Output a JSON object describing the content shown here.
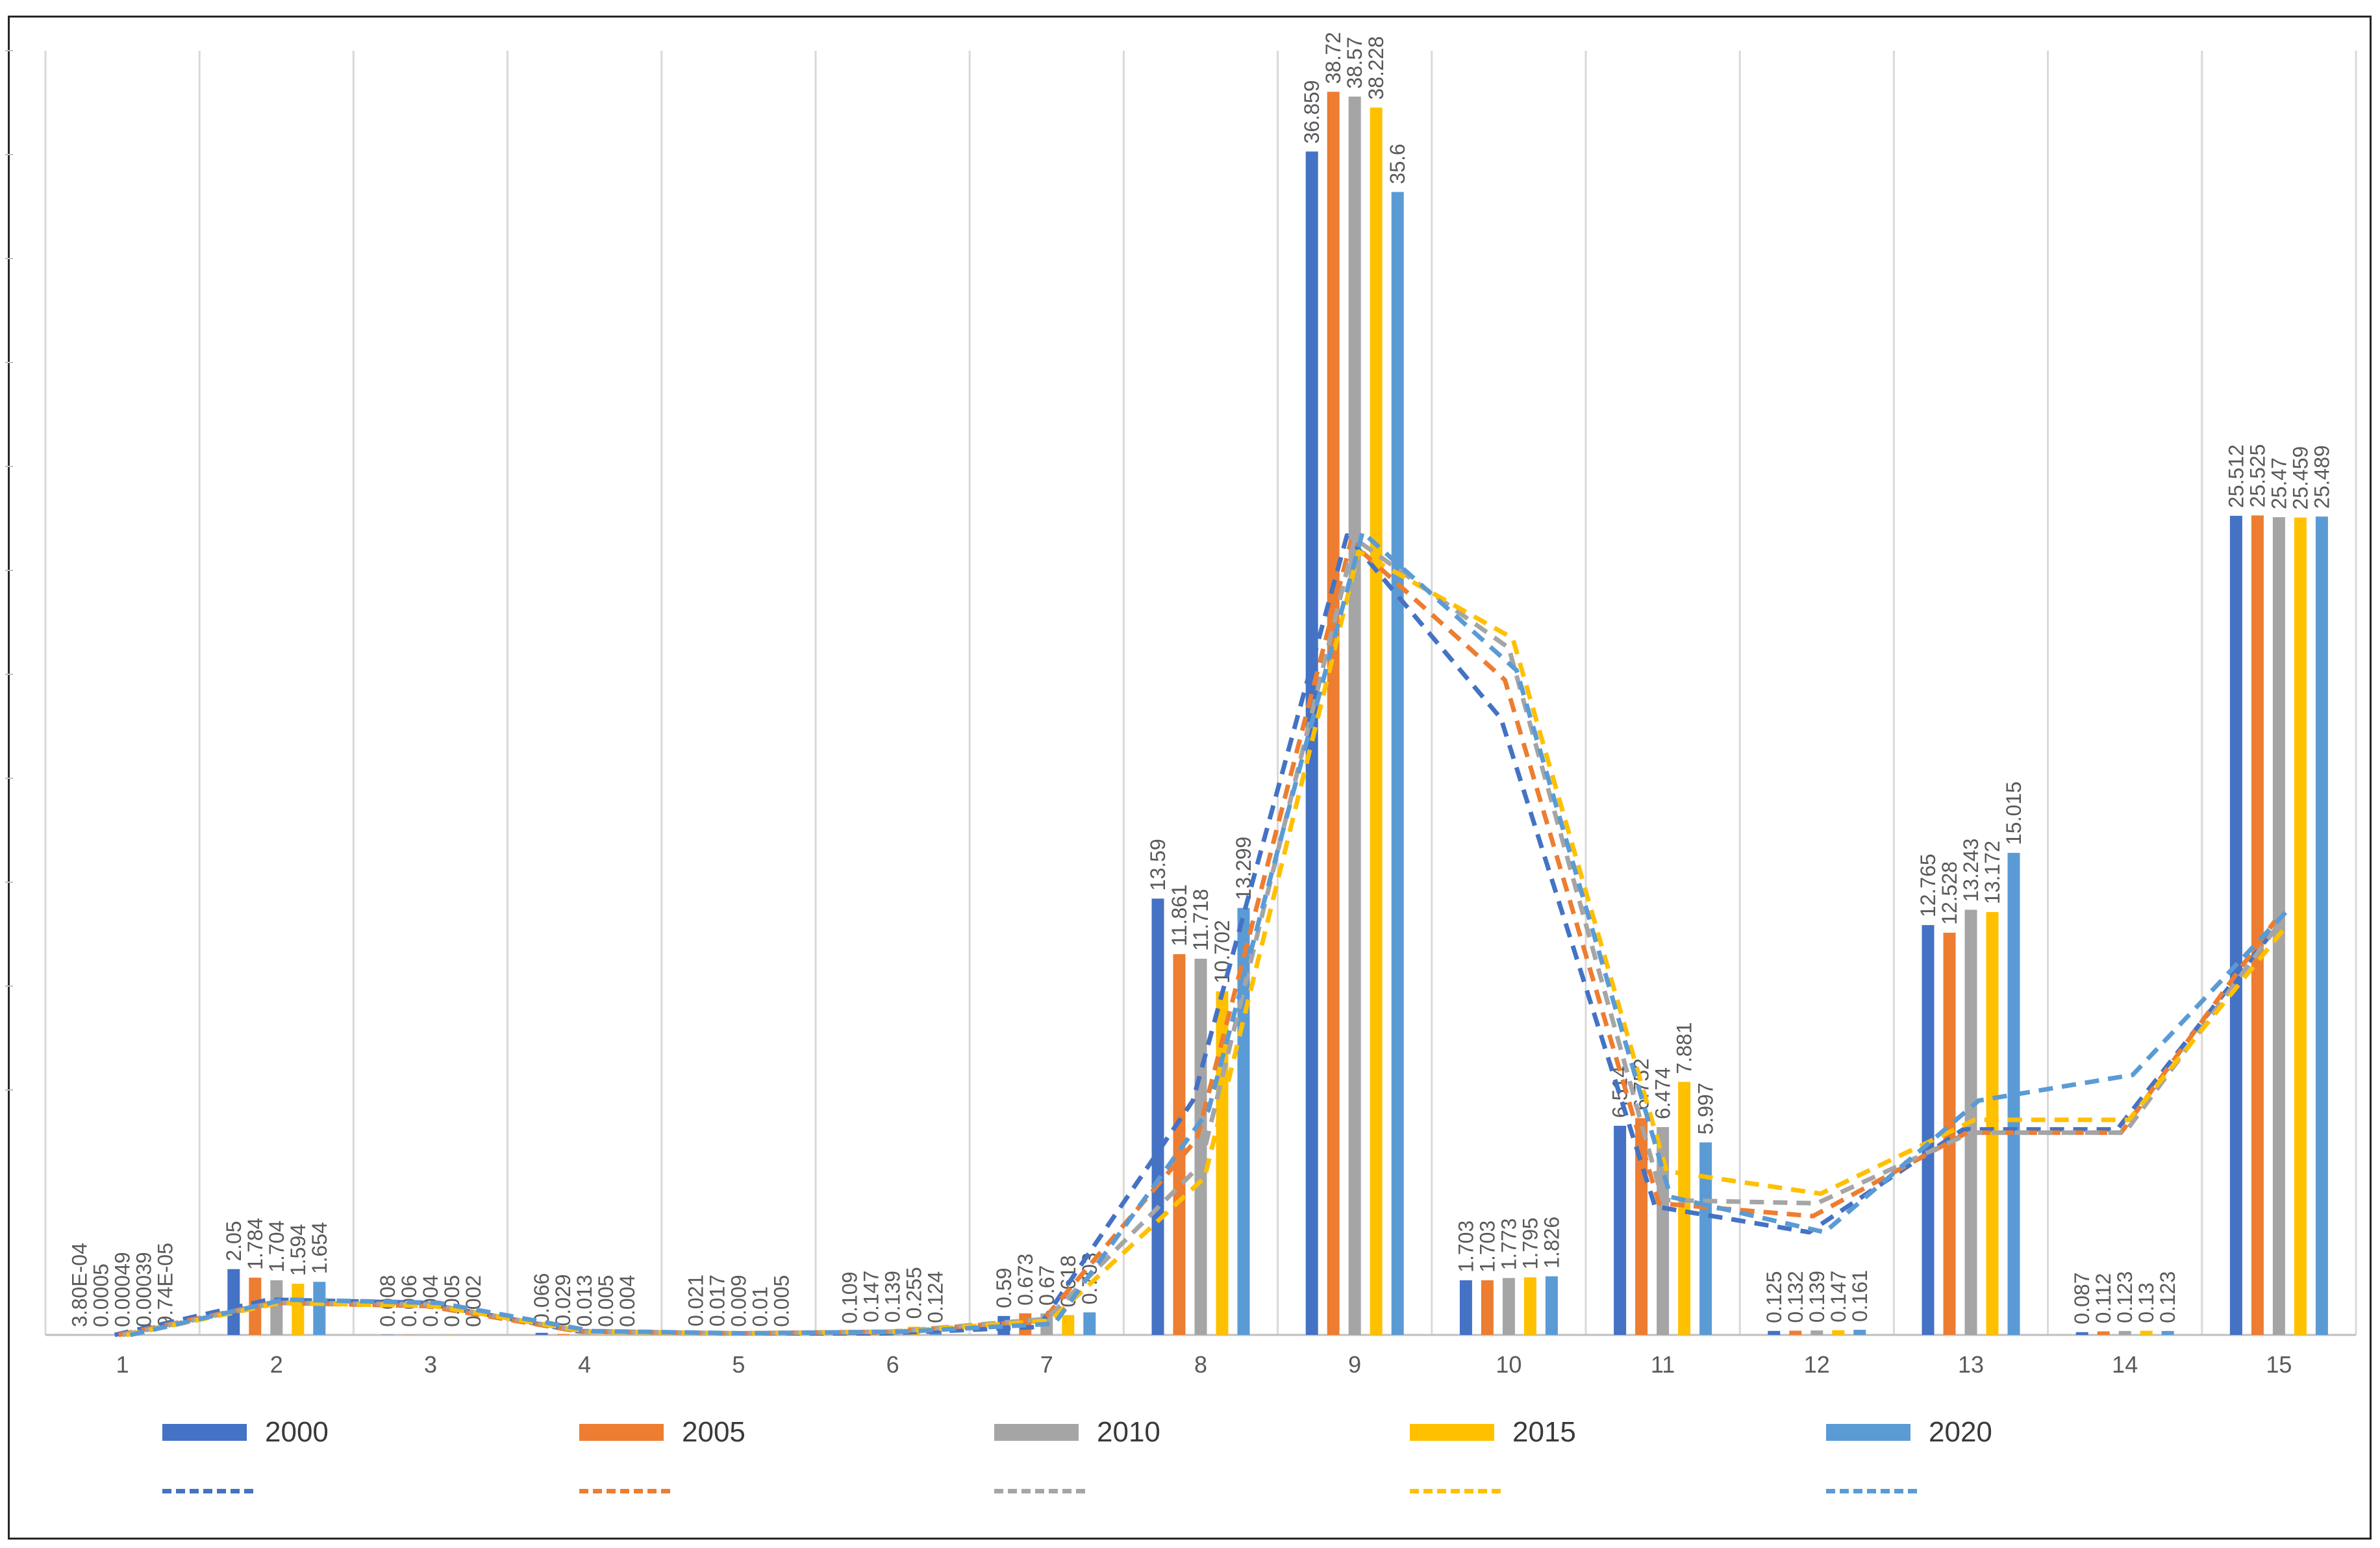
{
  "chart_data": {
    "type": "bar",
    "title": "",
    "xlabel": "",
    "ylabel": "",
    "ylim": [
      0,
      40
    ],
    "grid": "vertical",
    "legend": "bottom",
    "categories": [
      "1",
      "2",
      "3",
      "4",
      "5",
      "6",
      "7",
      "8",
      "9",
      "10",
      "11",
      "12",
      "13",
      "14",
      "15"
    ],
    "series": [
      {
        "name": "2000",
        "color": "#4472c4",
        "values": [
          0.00038,
          2.05,
          0.008,
          0.066,
          0.021,
          0.109,
          0.59,
          13.59,
          36.859,
          1.703,
          6.514,
          0.125,
          12.765,
          0.087,
          25.512
        ],
        "labels": [
          "3.80E-04",
          "2.05",
          "0.008",
          "0.066",
          "0.021",
          "0.109",
          "0.59",
          "13.59",
          "36.859",
          "1.703",
          "6.514",
          "0.125",
          "12.765",
          "0.087",
          "25.512"
        ]
      },
      {
        "name": "2005",
        "color": "#ed7d31",
        "values": [
          0.0005,
          1.784,
          0.006,
          0.029,
          0.017,
          0.147,
          0.673,
          11.861,
          38.72,
          1.703,
          6.752,
          0.132,
          12.528,
          0.112,
          25.525
        ],
        "labels": [
          "0.0005",
          "1.784",
          "0.006",
          "0.029",
          "0.017",
          "0.147",
          "0.673",
          "11.861",
          "38.72",
          "1.703",
          "6.752",
          "0.132",
          "12.528",
          "0.112",
          "25.525"
        ]
      },
      {
        "name": "2010",
        "color": "#a5a5a5",
        "values": [
          0.00049,
          1.704,
          0.004,
          0.013,
          0.009,
          0.139,
          0.67,
          11.718,
          38.57,
          1.773,
          6.474,
          0.139,
          13.243,
          0.123,
          25.47
        ],
        "labels": [
          "0.00049",
          "1.704",
          "0.004",
          "0.013",
          "0.009",
          "0.139",
          "0.67",
          "11.718",
          "38.57",
          "1.773",
          "6.474",
          "0.139",
          "13.243",
          "0.123",
          "25.47"
        ]
      },
      {
        "name": "2015",
        "color": "#ffc000",
        "values": [
          0.00039,
          1.594,
          0.005,
          0.005,
          0.01,
          0.255,
          0.618,
          10.702,
          38.228,
          1.795,
          7.881,
          0.147,
          13.172,
          0.13,
          25.459
        ],
        "labels": [
          "0.00039",
          "1.594",
          "0.005",
          "0.005",
          "0.01",
          "0.255",
          "0.618",
          "10.702",
          "38.228",
          "1.795",
          "7.881",
          "0.147",
          "13.172",
          "0.13",
          "25.459"
        ]
      },
      {
        "name": "2020",
        "color": "#5b9bd5",
        "values": [
          9.74e-05,
          1.654,
          0.002,
          0.004,
          0.005,
          0.124,
          0.703,
          13.299,
          35.6,
          1.826,
          5.997,
          0.161,
          15.015,
          0.123,
          25.489
        ],
        "labels": [
          "9.74E-05",
          "1.654",
          "0.002",
          "0.004",
          "0.005",
          "0.124",
          "0.703",
          "13.299",
          "35.6",
          "1.826",
          "5.997",
          "0.161",
          "15.015",
          "0.123",
          "25.489"
        ]
      }
    ],
    "trendlines": [
      {
        "series": "2000",
        "style": "dashed",
        "values": [
          0,
          1.1,
          1.0,
          0.12,
          0.05,
          0.05,
          0.25,
          7.3,
          24.9,
          19.2,
          4.0,
          3.2,
          6.4,
          6.4,
          12.5
        ]
      },
      {
        "series": "2005",
        "style": "dashed",
        "values": [
          0,
          1.0,
          0.9,
          0.1,
          0.05,
          0.1,
          0.45,
          6.1,
          24.7,
          20.4,
          4.1,
          3.7,
          6.3,
          6.3,
          12.9
        ]
      },
      {
        "series": "2010",
        "style": "dashed",
        "values": [
          0,
          1.0,
          0.95,
          0.1,
          0.05,
          0.1,
          0.5,
          5.3,
          24.8,
          21.4,
          4.2,
          4.1,
          6.3,
          6.3,
          12.8
        ]
      },
      {
        "series": "2015",
        "style": "dashed",
        "values": [
          0,
          1.0,
          0.9,
          0.1,
          0.05,
          0.1,
          0.45,
          4.9,
          24.4,
          21.7,
          5.1,
          4.4,
          6.7,
          6.7,
          12.6
        ]
      },
      {
        "series": "2020",
        "style": "dashed",
        "values": [
          0,
          1.1,
          1.0,
          0.12,
          0.05,
          0.1,
          0.35,
          7.0,
          25.0,
          20.7,
          4.3,
          3.2,
          7.3,
          8.1,
          13.2
        ]
      }
    ]
  }
}
